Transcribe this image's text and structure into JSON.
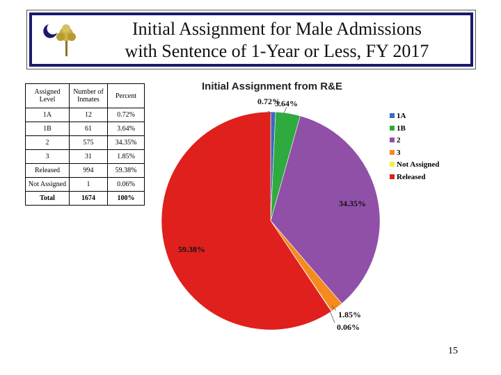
{
  "header": {
    "title_line1": "Initial Assignment for Male Admissions",
    "title_line2": "with Sentence of 1-Year or Less, FY 2017"
  },
  "table": {
    "headers": [
      "Assigned Level",
      "Number of Inmates",
      "Percent"
    ],
    "rows": [
      [
        "1A",
        "12",
        "0.72%"
      ],
      [
        "1B",
        "61",
        "3.64%"
      ],
      [
        "2",
        "575",
        "34.35%"
      ],
      [
        "3",
        "31",
        "1.85%"
      ],
      [
        "Released",
        "994",
        "59.38%"
      ],
      [
        "Not Assigned",
        "1",
        "0.06%"
      ]
    ],
    "total": [
      "Total",
      "1674",
      "100%"
    ]
  },
  "chart_data": {
    "type": "pie",
    "title": "Initial Assignment from R&E",
    "categories": [
      "1A",
      "1B",
      "2",
      "3",
      "Not Assigned",
      "Released"
    ],
    "values": [
      0.72,
      3.64,
      34.35,
      1.85,
      0.06,
      59.38
    ],
    "data_labels": [
      "0.72%",
      "3.64%",
      "34.35%",
      "1.85%",
      "0.06%",
      "59.38%"
    ],
    "colors": [
      "#3a6bbf",
      "#2eaa3e",
      "#9050a8",
      "#f58a1f",
      "#f2f046",
      "#e0201c"
    ],
    "legend_position": "right"
  },
  "footer": {
    "page_number": "15"
  }
}
